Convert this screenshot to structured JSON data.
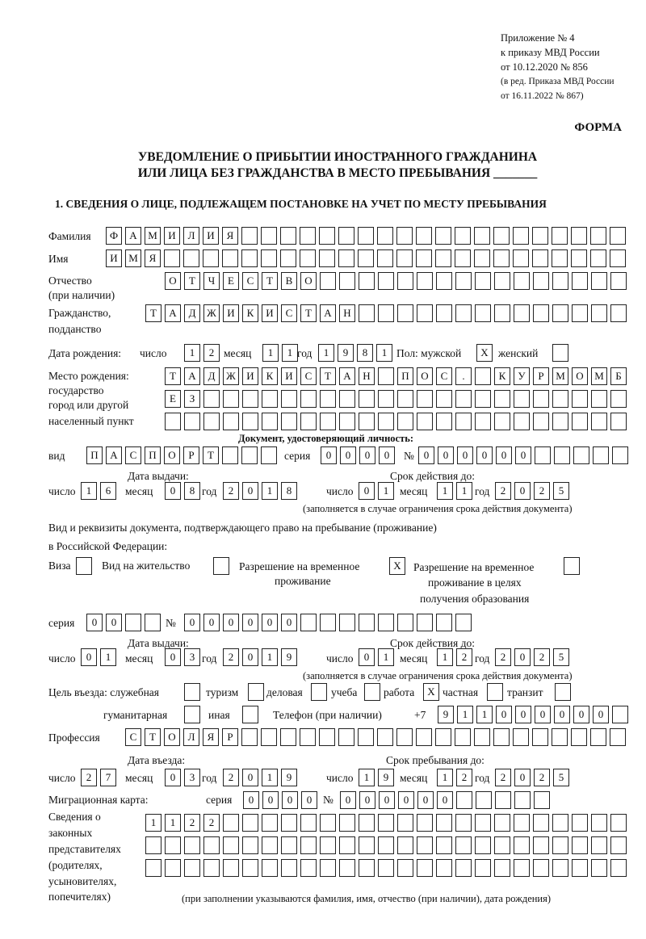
{
  "header": {
    "line1": "Приложение № 4",
    "line2": "к приказу МВД России",
    "line3": "от 10.12.2020 № 856",
    "line4": "(в ред. Приказа МВД России",
    "line5": "от 16.11.2022 № 867)"
  },
  "forma": "ФОРМА",
  "title": {
    "line1": "УВЕДОМЛЕНИЕ О ПРИБЫТИИ ИНОСТРАННОГО ГРАЖДАНИНА",
    "line2": "ИЛИ ЛИЦА БЕЗ ГРАЖДАНСТВА В МЕСТО ПРЕБЫВАНИЯ _______"
  },
  "section1": "1. СВЕДЕНИЯ О ЛИЦЕ, ПОДЛЕЖАЩЕМ ПОСТАНОВКЕ НА УЧЕТ ПО МЕСТУ ПРЕБЫВАНИЯ",
  "labels": {
    "surname": "Фамилия",
    "name": "Имя",
    "patronymic": "Отчество",
    "patronymic2": "(при наличии)",
    "citizenship": "Гражданство,",
    "citizenship2": "подданство",
    "birth_date": "Дата рождения:",
    "day": "число",
    "month": "месяц",
    "year": "год",
    "sex": "Пол: мужской",
    "female": "женский",
    "birthplace1": "Место рождения:",
    "birthplace2": "государство",
    "birthplace3": "город или другой",
    "birthplace4": "населенный пункт",
    "id_doc": "Документ, удостоверяющий личность:",
    "kind": "вид",
    "series": "серия",
    "number": "№",
    "issue_date": "Дата выдачи:",
    "valid_until": "Срок действия до:",
    "validity_note": "(заполняется в случае ограничения срока действия документа)",
    "right_doc1": "Вид и реквизиты документа, подтверждающего право на пребывание (проживание)",
    "right_doc2": "в Российской Федерации:",
    "visa": "Виза",
    "residence": "Вид на жительство",
    "temp1": "Разрешение на временное",
    "temp2": "проживание",
    "edu1": "Разрешение на временное",
    "edu2": "проживание в целях",
    "edu3": "получения образования",
    "purpose": "Цель въезда: служебная",
    "tourism": "туризм",
    "business": "деловая",
    "study": "учеба",
    "work": "работа",
    "private": "частная",
    "transit": "транзит",
    "humanitarian": "гуманитарная",
    "other": "иная",
    "phone": "Телефон (при наличии)",
    "phone_prefix": "+7",
    "profession": "Профессия",
    "entry_date": "Дата въезда:",
    "stay_until": "Срок пребывания до:",
    "migration_card": "Миграционная карта:",
    "reps1": "Сведения о",
    "reps2": "законных",
    "reps3": "представителях",
    "reps4": "(родителях,",
    "reps5": "усыновителях,",
    "reps6": "попечителях)",
    "reps_note": "(при заполнении указываются фамилия, имя, отчество (при наличии), дата рождения)"
  },
  "fields": {
    "surname": [
      "Ф",
      "А",
      "М",
      "И",
      "Л",
      "И",
      "Я"
    ],
    "name": [
      "И",
      "М",
      "Я"
    ],
    "patronymic": [
      "О",
      "Т",
      "Ч",
      "Е",
      "С",
      "Т",
      "В",
      "О"
    ],
    "citizenship": [
      "Т",
      "А",
      "Д",
      "Ж",
      "И",
      "К",
      "И",
      "С",
      "Т",
      "А",
      "Н"
    ],
    "birth_day": [
      "1",
      "2"
    ],
    "birth_month": [
      "1",
      "1"
    ],
    "birth_year": [
      "1",
      "9",
      "8",
      "1"
    ],
    "sex_male": [
      "X"
    ],
    "sex_female": [],
    "birthplace_1": [
      "Т",
      "А",
      "Д",
      "Ж",
      "И",
      "К",
      "И",
      "С",
      "Т",
      "А",
      "Н",
      "",
      "П",
      "О",
      "С",
      ".",
      "",
      "К",
      "У",
      "Р",
      "М",
      "О",
      "М",
      "Б"
    ],
    "birthplace_2": [
      "Е",
      "З"
    ],
    "birthplace_3": [],
    "doc_kind": [
      "П",
      "А",
      "С",
      "П",
      "О",
      "Р",
      "Т"
    ],
    "doc_series": [
      "0",
      "0",
      "0",
      "0"
    ],
    "doc_number": [
      "0",
      "0",
      "0",
      "0",
      "0",
      "0"
    ],
    "doc_issue_day": [
      "1",
      "6"
    ],
    "doc_issue_month": [
      "0",
      "8"
    ],
    "doc_issue_year": [
      "2",
      "0",
      "1",
      "8"
    ],
    "doc_valid_day": [
      "0",
      "1"
    ],
    "doc_valid_month": [
      "1",
      "1"
    ],
    "doc_valid_year": [
      "2",
      "0",
      "2",
      "5"
    ],
    "visa": [],
    "residence": [],
    "temp_residence": [
      "X"
    ],
    "edu_residence": [],
    "right_series": [
      "0",
      "0"
    ],
    "right_number": [
      "0",
      "0",
      "0",
      "0",
      "0",
      "0"
    ],
    "right_issue_day": [
      "0",
      "1"
    ],
    "right_issue_month": [
      "0",
      "3"
    ],
    "right_issue_year": [
      "2",
      "0",
      "1",
      "9"
    ],
    "right_valid_day": [
      "0",
      "1"
    ],
    "right_valid_month": [
      "1",
      "2"
    ],
    "right_valid_year": [
      "2",
      "0",
      "2",
      "5"
    ],
    "p_service": [],
    "p_tourism": [],
    "p_business": [],
    "p_study": [],
    "p_work": [
      "X"
    ],
    "p_private": [],
    "p_transit": [],
    "p_humanitarian": [],
    "p_other": [],
    "phone": [
      "9",
      "1",
      "1",
      "0",
      "0",
      "0",
      "0",
      "0",
      "0"
    ],
    "profession": [
      "С",
      "Т",
      "О",
      "Л",
      "Я",
      "Р"
    ],
    "entry_day": [
      "2",
      "7"
    ],
    "entry_month": [
      "0",
      "3"
    ],
    "entry_year": [
      "2",
      "0",
      "1",
      "9"
    ],
    "stay_day": [
      "1",
      "9"
    ],
    "stay_month": [
      "1",
      "2"
    ],
    "stay_year": [
      "2",
      "0",
      "2",
      "5"
    ],
    "mc_series": [
      "0",
      "0",
      "0",
      "0"
    ],
    "mc_number": [
      "0",
      "0",
      "0",
      "0",
      "0",
      "0"
    ],
    "reps_1": [
      "1",
      "1",
      "2",
      "2"
    ],
    "reps_2": [],
    "reps_3": []
  }
}
